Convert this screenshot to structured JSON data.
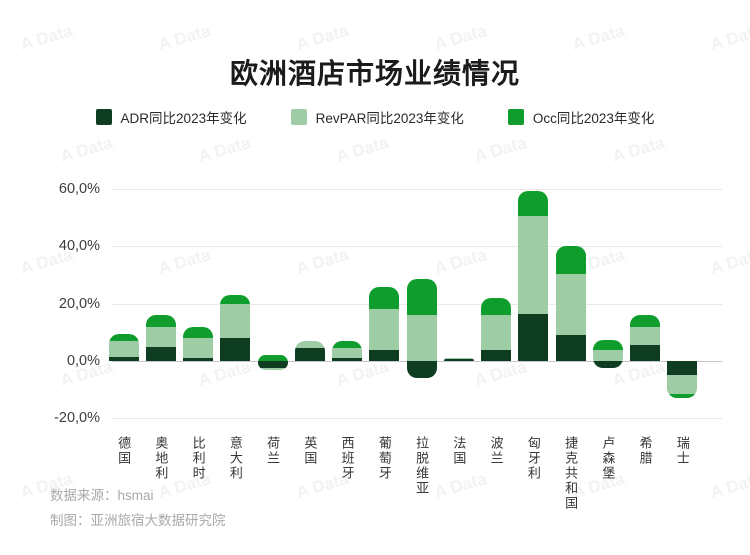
{
  "title": "欧洲酒店市场业绩情况",
  "watermark": "A Data",
  "legend": {
    "items": [
      {
        "label": "ADR同比2023年变化"
      },
      {
        "label": "RevPAR同比2023年变化"
      },
      {
        "label": "Occ同比2023年变化"
      }
    ]
  },
  "footer": {
    "source": "数据来源：hsmai",
    "credit": "制图：亚洲旅宿大数据研究院"
  },
  "chart_data": {
    "type": "bar",
    "stacked": true,
    "title": "欧洲酒店市场业绩情况",
    "xlabel": "",
    "ylabel": "",
    "ylim": [
      -23,
      65
    ],
    "grid": true,
    "legend_position": "top",
    "categories": [
      "德国",
      "奥地利",
      "比利时",
      "意大利",
      "荷兰",
      "英国",
      "西班牙",
      "葡萄牙",
      "拉脱维亚",
      "法国",
      "波兰",
      "匈牙利",
      "捷克共和国",
      "卢森堡",
      "希腊",
      "瑞士"
    ],
    "series": [
      {
        "name": "ADR同比2023年变化",
        "color": "#0e3d22",
        "values": [
          1.5,
          5.0,
          1.0,
          8.0,
          -2.5,
          4.5,
          1.0,
          4.0,
          -6.0,
          0.7,
          4.0,
          16.5,
          9.0,
          -2.5,
          5.5,
          -5.0
        ]
      },
      {
        "name": "RevPAR同比2023年变化",
        "color": "#9ecca4",
        "values": [
          5.5,
          7.0,
          7.0,
          12.0,
          -0.5,
          2.5,
          3.5,
          14.0,
          16.0,
          0.3,
          12.0,
          34.0,
          21.5,
          4.0,
          6.5,
          -6.5
        ]
      },
      {
        "name": "Occ同比2023年变化",
        "color": "#0f9d2e",
        "values": [
          2.5,
          4.0,
          4.0,
          3.0,
          2.0,
          0.0,
          2.5,
          8.0,
          12.5,
          0.0,
          6.0,
          9.0,
          9.5,
          3.5,
          4.0,
          -1.5
        ]
      }
    ],
    "yticks": [
      {
        "label": "60,0%",
        "value": 60
      },
      {
        "label": "40,0%",
        "value": 40
      },
      {
        "label": "20,0%",
        "value": 20
      },
      {
        "label": "0,0%",
        "value": 0
      },
      {
        "label": "-20,0%",
        "value": -20
      }
    ]
  }
}
